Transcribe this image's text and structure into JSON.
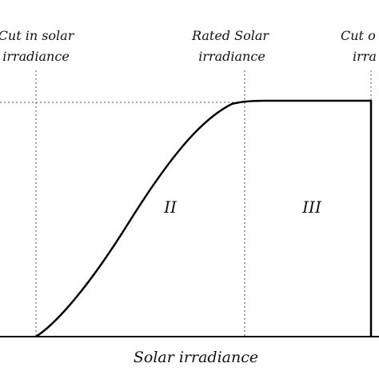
{
  "labels": {
    "cut_in_line1": "Cut in solar",
    "cut_in_line2": "irradiance",
    "rated_line1": "Rated Solar",
    "rated_line2": "irradiance",
    "cut_out_line1": "Cut o",
    "cut_out_line2": "irra",
    "region_ii": "II",
    "region_iii": "III",
    "x_axis": "Solar irradiance"
  },
  "colors": {
    "curve": "#000000",
    "guides": "#555555",
    "text": "#111111"
  }
}
